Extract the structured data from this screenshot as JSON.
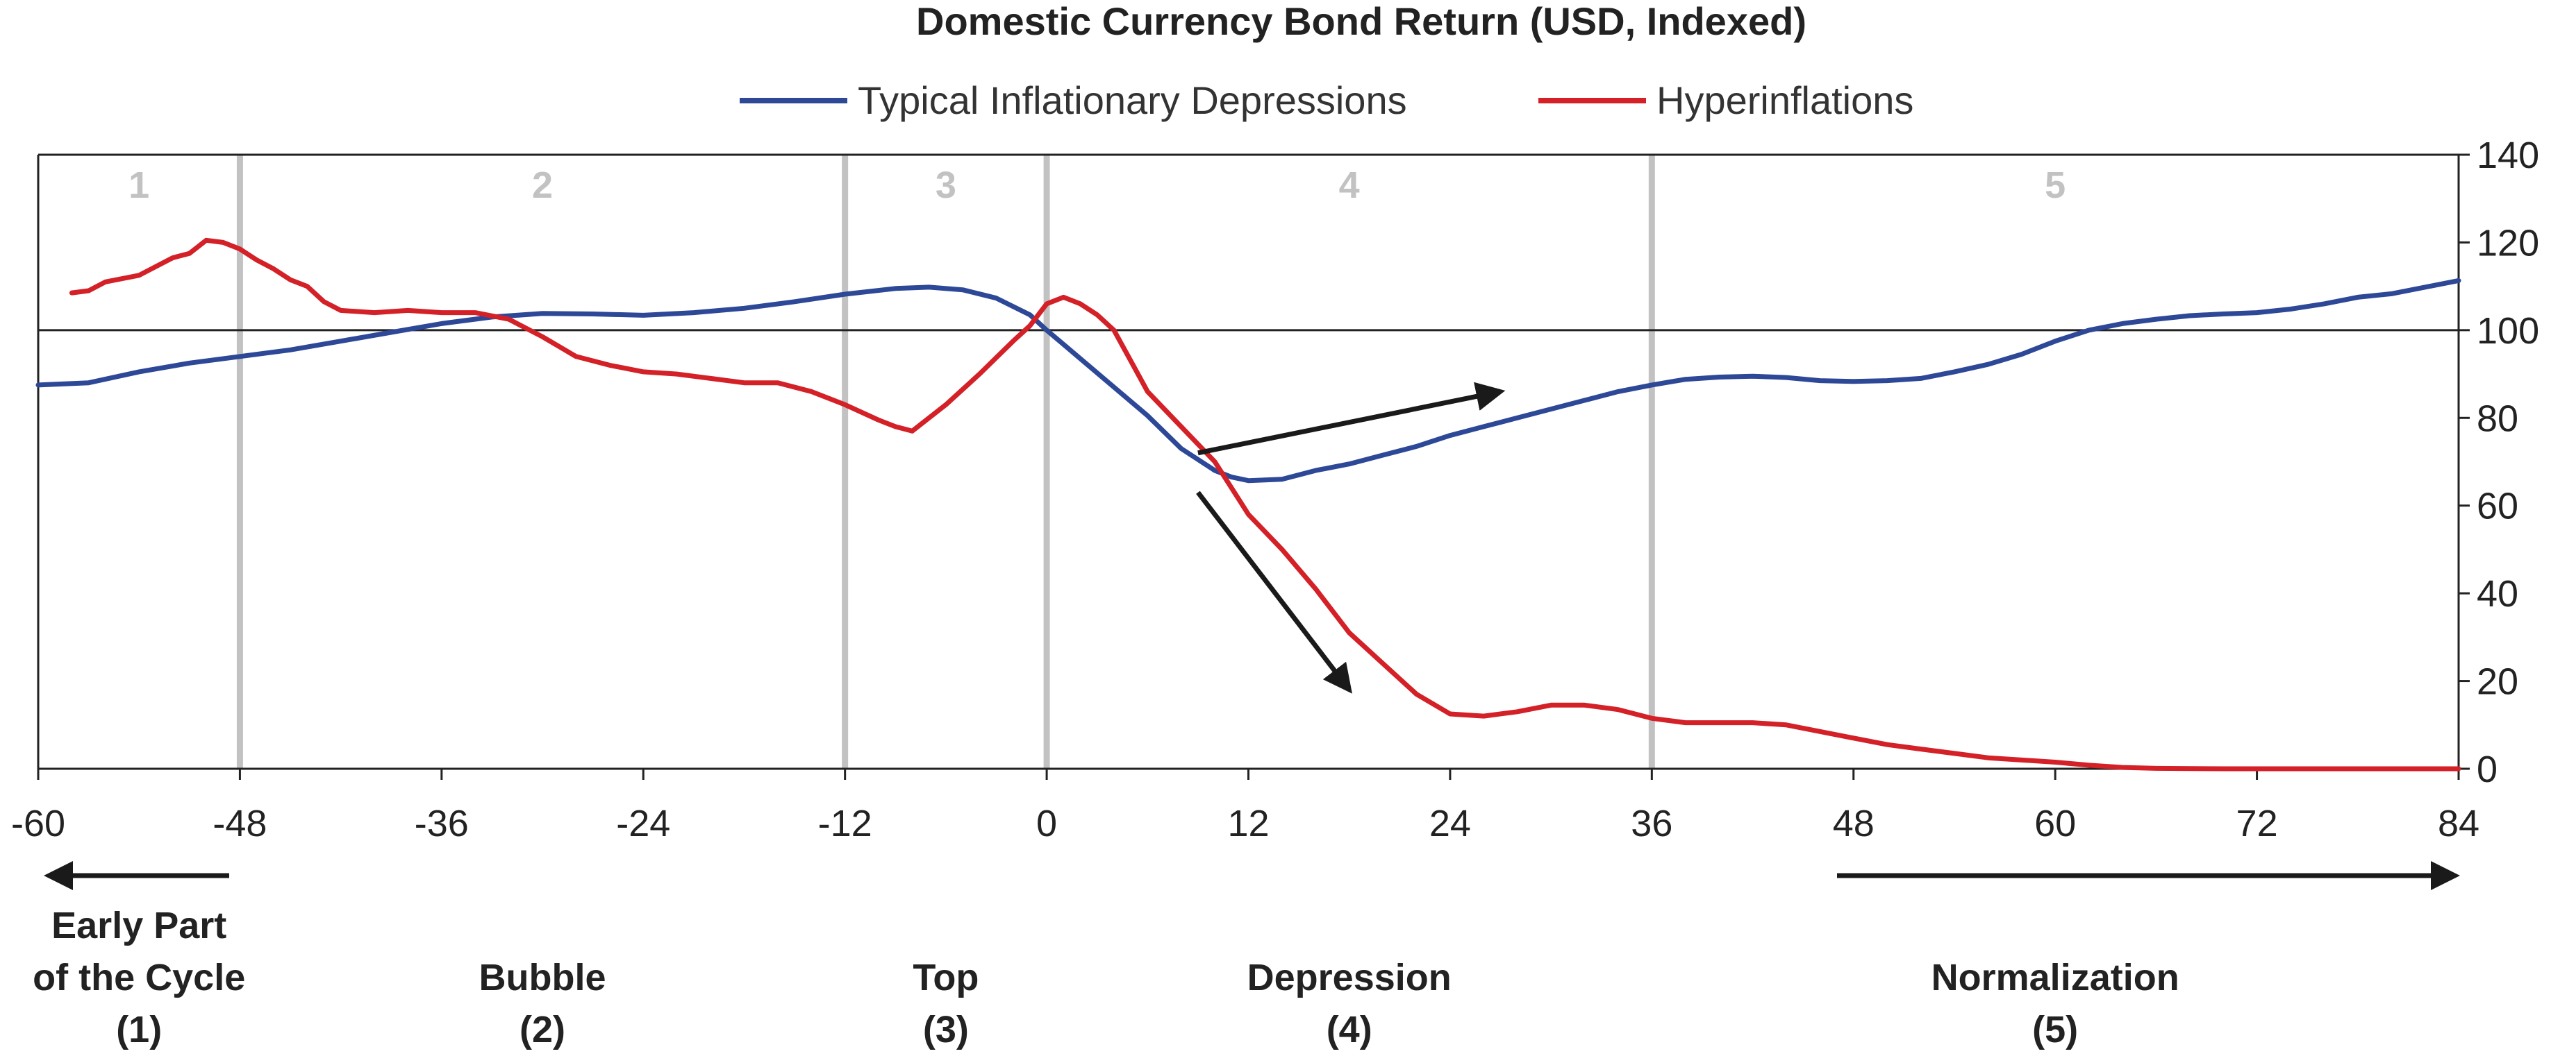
{
  "chart_data": {
    "type": "line",
    "title": "Domestic Currency Bond Return (USD, Indexed)",
    "xlabel": "",
    "ylabel": "",
    "xlim": [
      -60,
      84
    ],
    "ylim": [
      0,
      140
    ],
    "x_ticks": [
      -60,
      -48,
      -36,
      -24,
      -12,
      0,
      12,
      24,
      36,
      48,
      60,
      72,
      84
    ],
    "y_ticks": [
      0,
      20,
      40,
      60,
      80,
      100,
      120,
      140
    ],
    "reference_line_y": 100,
    "legend_position": "top-center",
    "series": [
      {
        "name": "Typical Inflationary Depressions",
        "color": "#2e4898",
        "points": [
          [
            -60,
            87.5
          ],
          [
            -57,
            88
          ],
          [
            -54,
            90.5
          ],
          [
            -51,
            92.5
          ],
          [
            -48,
            94
          ],
          [
            -45,
            95.5
          ],
          [
            -42,
            97.5
          ],
          [
            -39,
            99.5
          ],
          [
            -36,
            101.5
          ],
          [
            -33,
            103
          ],
          [
            -30,
            103.8
          ],
          [
            -27,
            103.7
          ],
          [
            -24,
            103.4
          ],
          [
            -21,
            104
          ],
          [
            -18,
            105
          ],
          [
            -15,
            106.5
          ],
          [
            -12,
            108.2
          ],
          [
            -9,
            109.5
          ],
          [
            -7,
            109.8
          ],
          [
            -5,
            109.2
          ],
          [
            -3,
            107.3
          ],
          [
            -1,
            103.5
          ],
          [
            0,
            100
          ],
          [
            2,
            93.5
          ],
          [
            4,
            87
          ],
          [
            6,
            80.5
          ],
          [
            8,
            73
          ],
          [
            10,
            68
          ],
          [
            11,
            66.5
          ],
          [
            12,
            65.7
          ],
          [
            14,
            66
          ],
          [
            16,
            68
          ],
          [
            18,
            69.5
          ],
          [
            20,
            71.5
          ],
          [
            22,
            73.5
          ],
          [
            24,
            76
          ],
          [
            26,
            78
          ],
          [
            28,
            80
          ],
          [
            30,
            82
          ],
          [
            32,
            84
          ],
          [
            34,
            86
          ],
          [
            36,
            87.5
          ],
          [
            38,
            88.8
          ],
          [
            40,
            89.3
          ],
          [
            42,
            89.5
          ],
          [
            44,
            89.2
          ],
          [
            46,
            88.5
          ],
          [
            48,
            88.3
          ],
          [
            50,
            88.5
          ],
          [
            52,
            89
          ],
          [
            54,
            90.5
          ],
          [
            56,
            92.2
          ],
          [
            58,
            94.5
          ],
          [
            60,
            97.5
          ],
          [
            62,
            100
          ],
          [
            64,
            101.5
          ],
          [
            66,
            102.5
          ],
          [
            68,
            103.3
          ],
          [
            70,
            103.7
          ],
          [
            72,
            104
          ],
          [
            74,
            104.8
          ],
          [
            76,
            106
          ],
          [
            78,
            107.5
          ],
          [
            80,
            108.3
          ],
          [
            82,
            109.8
          ],
          [
            84,
            111.3
          ]
        ]
      },
      {
        "name": "Hyperinflations",
        "color": "#d42027",
        "points": [
          [
            -58,
            108.5
          ],
          [
            -57,
            109
          ],
          [
            -56,
            111
          ],
          [
            -54,
            112.5
          ],
          [
            -52,
            116.5
          ],
          [
            -51,
            117.5
          ],
          [
            -50,
            120.5
          ],
          [
            -49,
            120
          ],
          [
            -48,
            118.5
          ],
          [
            -47,
            116
          ],
          [
            -46,
            114
          ],
          [
            -45,
            111.5
          ],
          [
            -44,
            110
          ],
          [
            -43,
            106.5
          ],
          [
            -42,
            104.5
          ],
          [
            -40,
            104
          ],
          [
            -38,
            104.5
          ],
          [
            -36,
            104
          ],
          [
            -34,
            104
          ],
          [
            -32,
            102.5
          ],
          [
            -30,
            98.5
          ],
          [
            -28,
            94
          ],
          [
            -26,
            92
          ],
          [
            -24,
            90.5
          ],
          [
            -22,
            90
          ],
          [
            -20,
            89
          ],
          [
            -18,
            88
          ],
          [
            -16,
            88
          ],
          [
            -14,
            86
          ],
          [
            -12,
            83
          ],
          [
            -10,
            79.5
          ],
          [
            -9,
            78
          ],
          [
            -8,
            77
          ],
          [
            -6,
            83
          ],
          [
            -4,
            90
          ],
          [
            -2,
            97.5
          ],
          [
            -1,
            101
          ],
          [
            0,
            106
          ],
          [
            1,
            107.5
          ],
          [
            2,
            106
          ],
          [
            3,
            103.5
          ],
          [
            4,
            100
          ],
          [
            5,
            93
          ],
          [
            6,
            86
          ],
          [
            8,
            78
          ],
          [
            10,
            70
          ],
          [
            11,
            64
          ],
          [
            12,
            58
          ],
          [
            14,
            50
          ],
          [
            16,
            41
          ],
          [
            18,
            31
          ],
          [
            20,
            24
          ],
          [
            22,
            17
          ],
          [
            24,
            12.5
          ],
          [
            26,
            12
          ],
          [
            28,
            13
          ],
          [
            30,
            14.5
          ],
          [
            32,
            14.5
          ],
          [
            34,
            13.5
          ],
          [
            36,
            11.5
          ],
          [
            38,
            10.5
          ],
          [
            40,
            10.5
          ],
          [
            42,
            10.5
          ],
          [
            44,
            10
          ],
          [
            46,
            8.5
          ],
          [
            48,
            7
          ],
          [
            50,
            5.5
          ],
          [
            52,
            4.5
          ],
          [
            54,
            3.5
          ],
          [
            56,
            2.5
          ],
          [
            58,
            2
          ],
          [
            60,
            1.5
          ],
          [
            62,
            0.8
          ],
          [
            64,
            0.3
          ],
          [
            66,
            0.1
          ],
          [
            70,
            0
          ],
          [
            84,
            0
          ]
        ]
      }
    ],
    "phases": [
      {
        "number": "1",
        "label_line1": "Early Part",
        "label_line2": "of the Cycle",
        "label_line3": "(1)",
        "x_start": -60,
        "x_end": -48
      },
      {
        "number": "2",
        "label_line1": "",
        "label_line2": "Bubble",
        "label_line3": "(2)",
        "x_start": -48,
        "x_end": -12
      },
      {
        "number": "3",
        "label_line1": "",
        "label_line2": "Top",
        "label_line3": "(3)",
        "x_start": -12,
        "x_end": 0
      },
      {
        "number": "4",
        "label_line1": "",
        "label_line2": "Depression",
        "label_line3": "(4)",
        "x_start": 0,
        "x_end": 36
      },
      {
        "number": "5",
        "label_line1": "",
        "label_line2": "Normalization",
        "label_line3": "(5)",
        "x_start": 36,
        "x_end": 84
      }
    ],
    "annotations": [
      {
        "kind": "arrow",
        "from": [
          9,
          72
        ],
        "to": [
          27,
          86
        ]
      },
      {
        "kind": "arrow",
        "from": [
          9,
          63
        ],
        "to": [
          18,
          18
        ]
      }
    ],
    "colors": {
      "axis": "#222222",
      "phase_divider": "#c2c2c2",
      "phase_number": "#c2c2c2",
      "arrow": "#1a1a1a"
    }
  }
}
